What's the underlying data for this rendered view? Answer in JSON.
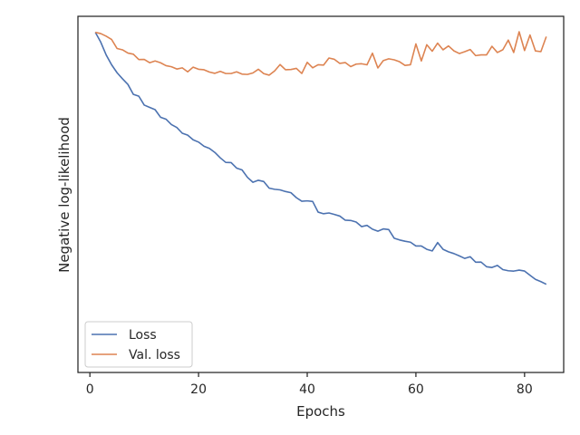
{
  "chart_data": {
    "type": "line",
    "title": "",
    "xlabel": "Epochs",
    "ylabel": "Negative log-likelihood",
    "xlim": [
      -2.2,
      87.2
    ],
    "ylim": [
      0,
      1
    ],
    "xticks": [
      0,
      20,
      40,
      60,
      80
    ],
    "yticks_visible": false,
    "grid": false,
    "legend": "lower-left",
    "series": [
      {
        "name": "Loss",
        "color": "#4c72b0",
        "x": [
          1,
          2,
          3,
          4,
          5,
          6,
          7,
          8,
          9,
          10,
          11,
          12,
          13,
          14,
          15,
          16,
          17,
          18,
          19,
          20,
          21,
          22,
          23,
          24,
          25,
          26,
          27,
          28,
          29,
          30,
          31,
          32,
          33,
          34,
          35,
          36,
          37,
          38,
          39,
          40,
          41,
          42,
          43,
          44,
          45,
          46,
          47,
          48,
          49,
          50,
          51,
          52,
          53,
          54,
          55,
          56,
          57,
          58,
          59,
          60,
          61,
          62,
          63,
          64,
          65,
          66,
          67,
          68,
          69,
          70,
          71,
          72,
          73,
          74,
          75,
          76,
          77,
          78,
          79,
          80,
          81,
          82,
          83,
          84
        ],
        "values": [
          0.9955,
          0.9652,
          0.9259,
          0.8958,
          0.8715,
          0.853,
          0.8356,
          0.8053,
          0.7996,
          0.7724,
          0.7653,
          0.7584,
          0.7352,
          0.7292,
          0.7128,
          0.7036,
          0.6861,
          0.6802,
          0.6659,
          0.6589,
          0.6462,
          0.6397,
          0.6272,
          0.6106,
          0.5967,
          0.5961,
          0.5792,
          0.5736,
          0.5508,
          0.5357,
          0.5419,
          0.538,
          0.5177,
          0.5142,
          0.5125,
          0.5074,
          0.5039,
          0.4885,
          0.4775,
          0.4788,
          0.4769,
          0.4443,
          0.4393,
          0.4417,
          0.4372,
          0.4321,
          0.4195,
          0.4187,
          0.414,
          0.3999,
          0.4036,
          0.392,
          0.3858,
          0.3928,
          0.3907,
          0.3643,
          0.3589,
          0.355,
          0.3521,
          0.3404,
          0.3404,
          0.3303,
          0.3253,
          0.351,
          0.3303,
          0.3226,
          0.3172,
          0.31,
          0.3023,
          0.3076,
          0.2909,
          0.2911,
          0.2769,
          0.2745,
          0.2809,
          0.2681,
          0.2646,
          0.2635,
          0.2665,
          0.2636,
          0.2506,
          0.2381,
          0.2312,
          0.2231
        ]
      },
      {
        "name": "Val. loss",
        "color": "#dd8452",
        "x": [
          1,
          2,
          3,
          4,
          5,
          6,
          7,
          8,
          9,
          10,
          11,
          12,
          13,
          14,
          15,
          16,
          17,
          18,
          19,
          20,
          21,
          22,
          23,
          24,
          25,
          26,
          27,
          28,
          29,
          30,
          31,
          32,
          33,
          34,
          35,
          36,
          37,
          38,
          39,
          40,
          41,
          42,
          43,
          44,
          45,
          46,
          47,
          48,
          49,
          50,
          51,
          52,
          53,
          54,
          55,
          56,
          57,
          58,
          59,
          60,
          61,
          62,
          63,
          64,
          65,
          66,
          67,
          68,
          69,
          70,
          71,
          72,
          73,
          74,
          75,
          76,
          77,
          78,
          79,
          80,
          81,
          82,
          83,
          84
        ],
        "values": [
          0.9954,
          0.9915,
          0.9835,
          0.9733,
          0.9459,
          0.9417,
          0.9318,
          0.9283,
          0.9119,
          0.9123,
          0.9022,
          0.9075,
          0.9021,
          0.8932,
          0.8899,
          0.8829,
          0.8865,
          0.8743,
          0.8887,
          0.8822,
          0.8806,
          0.8737,
          0.8697,
          0.8757,
          0.8691,
          0.8691,
          0.8743,
          0.8673,
          0.8663,
          0.8708,
          0.8822,
          0.8687,
          0.8641,
          0.8771,
          0.8965,
          0.8808,
          0.8815,
          0.8849,
          0.8693,
          0.9034,
          0.8865,
          0.8961,
          0.8949,
          0.9166,
          0.9126,
          0.9001,
          0.9027,
          0.8903,
          0.8979,
          0.899,
          0.8958,
          0.9314,
          0.8862,
          0.9088,
          0.9143,
          0.9111,
          0.9051,
          0.894,
          0.8959,
          0.9599,
          0.9075,
          0.9574,
          0.9374,
          0.9622,
          0.9418,
          0.9537,
          0.9386,
          0.9304,
          0.9361,
          0.9426,
          0.924,
          0.9262,
          0.9262,
          0.9525,
          0.9335,
          0.942,
          0.9716,
          0.9337,
          0.9972,
          0.9396,
          0.9872,
          0.9384,
          0.9361,
          0.9823
        ]
      }
    ]
  }
}
